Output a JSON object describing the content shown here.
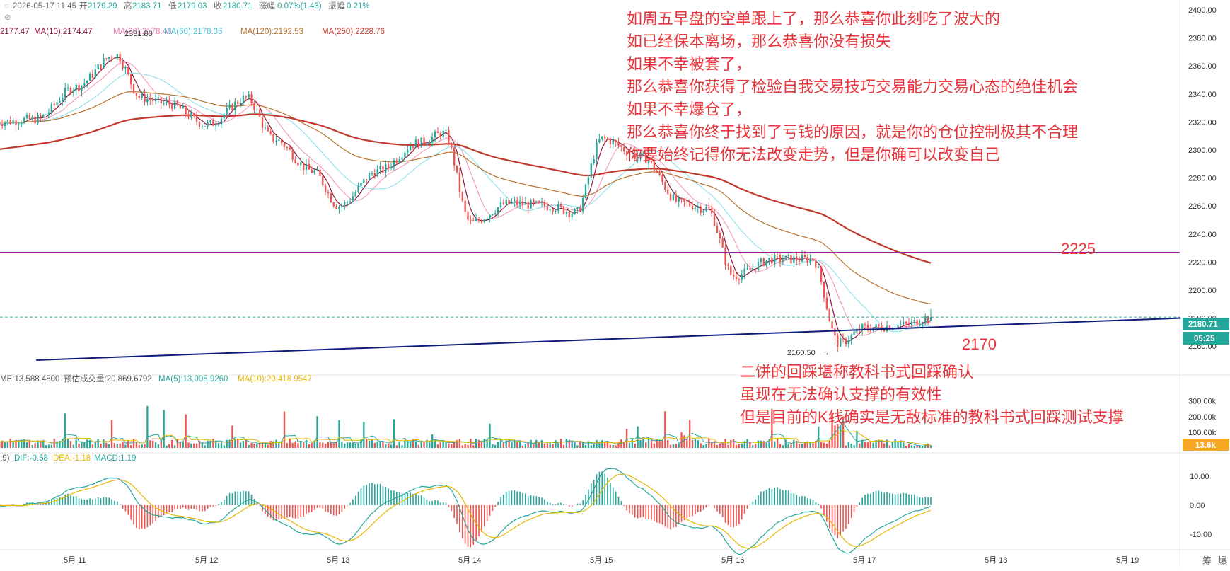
{
  "header": {
    "row1": {
      "datetime": "2026-05-17 11:45",
      "open_label": "开",
      "open": "2179.29",
      "high_label": "高",
      "high": "2183.71",
      "low_label": "低",
      "low": "2179.03",
      "close_label": "收",
      "close": "2180.71",
      "change_label": "涨幅",
      "change": "0.07%(1.43)",
      "amp_label": "振幅",
      "amp": "0.21%"
    },
    "row2": {
      "ma5": "2177.47",
      "ma10": "MA(10):2174.47",
      "ma30": "MA(30):2178.48",
      "ma60": "MA(60):2178.05",
      "ma120": "MA(120):2192.53",
      "ma250": "MA(250):2228.76"
    }
  },
  "annotations": {
    "top_block": [
      "如周五早盘的空单跟上了，那么恭喜你此刻吃了波大的",
      "如已经保本离场，那么恭喜你没有损失",
      "如果不幸被套了，",
      "那么恭喜你获得了检验自我交易技巧交易能力交易心态的绝佳机会",
      "如果不幸爆仓了，",
      "那么恭喜你终于找到了亏钱的原因，就是你的仓位控制极其不合理",
      "你要始终记得你无法改变走势，但是你确可以改变自己"
    ],
    "bottom_block": [
      "二饼的回踩堪称教科书式回踩确认",
      "虽现在无法确认支撑的有效性",
      "但是目前的K线确实是无敌标准的教科书式回踩测试支撑"
    ],
    "level_2225": "2225",
    "level_2170": "2170"
  },
  "price_panel": {
    "yticks": [
      "2400.00",
      "2380.00",
      "2360.00",
      "2340.00",
      "2320.00",
      "2300.00",
      "2280.00",
      "2260.00",
      "2240.00",
      "2220.00",
      "2200.00",
      "2180.00",
      "2160.00"
    ],
    "last_price": "2180.71",
    "countdown": "05:25",
    "high_label": "2381.80",
    "low_label": "2160.50"
  },
  "volume_panel": {
    "label_vol": "ME:13,588.4800",
    "label_est": "预估成交量:20,869.6792",
    "label_ma5": "MA(5):13,005.9260",
    "label_ma10": "MA(10):20,418.9547",
    "yticks": [
      "300.00k",
      "200.00k",
      "100.00k"
    ],
    "current": "13.6k"
  },
  "macd_panel": {
    "label_params": ",9)",
    "label_dif": "DIF:-0.58",
    "label_dea": "DEA:-1.18",
    "label_macd": "MACD:1.19",
    "yticks": [
      "10.00",
      "0.00",
      "-10.00"
    ]
  },
  "xaxis": {
    "labels": [
      "5月 11",
      "5月 12",
      "5月 13",
      "5月 14",
      "5月 15",
      "5月 16",
      "5月 17",
      "5月 18",
      "5月 19"
    ]
  },
  "corner_icons": [
    "筹",
    "爆"
  ],
  "colors": {
    "up": "#26a69a",
    "down": "#ef5350",
    "ma10": "#8b1538",
    "ma30": "#f48fb1",
    "ma60": "#80deea",
    "ma120": "#b8732e",
    "ma250": "#c0392b",
    "support": "#0d1b7a",
    "resistance": "#a020a0",
    "annotation": "#e8353b",
    "price_tag": "#26a69a",
    "volume_tag": "#f5a623"
  },
  "chart_data": {
    "type": "candlestick",
    "title": "",
    "x_categories": [
      "5月 11",
      "5月 12",
      "5月 13",
      "5月 14",
      "5月 15",
      "5月 16",
      "5月 17",
      "5月 18",
      "5月 19"
    ],
    "ylim": [
      2152,
      2402
    ],
    "close_anchors": [
      {
        "x": "5月 10.4",
        "y": 2320
      },
      {
        "x": "5月 10.7",
        "y": 2322
      },
      {
        "x": "5月 11",
        "y": 2345
      },
      {
        "x": "5月 11.3",
        "y": 2368
      },
      {
        "x": "5月 11.5",
        "y": 2337
      },
      {
        "x": "5月 11.7",
        "y": 2333
      },
      {
        "x": "5月 12",
        "y": 2318
      },
      {
        "x": "5月 12.3",
        "y": 2337
      },
      {
        "x": "5月 12.5",
        "y": 2308
      },
      {
        "x": "5月 12.8",
        "y": 2285
      },
      {
        "x": "5月 13",
        "y": 2260
      },
      {
        "x": "5月 13.3",
        "y": 2285
      },
      {
        "x": "5月 13.6",
        "y": 2305
      },
      {
        "x": "5月 13.8",
        "y": 2312
      },
      {
        "x": "5月 14",
        "y": 2248
      },
      {
        "x": "5月 14.3",
        "y": 2262
      },
      {
        "x": "5月 14.6",
        "y": 2260
      },
      {
        "x": "5月 14.8",
        "y": 2255
      },
      {
        "x": "5月 15",
        "y": 2308
      },
      {
        "x": "5月 15.3",
        "y": 2295
      },
      {
        "x": "5月 15.6",
        "y": 2262
      },
      {
        "x": "5月 15.8",
        "y": 2258
      },
      {
        "x": "5月 16",
        "y": 2210
      },
      {
        "x": "5月 16.3",
        "y": 2222
      },
      {
        "x": "5月 16.6",
        "y": 2222
      },
      {
        "x": "5月 16.8",
        "y": 2162
      },
      {
        "x": "5月 17",
        "y": 2173
      },
      {
        "x": "5月 17.3",
        "y": 2175
      },
      {
        "x": "5月 17.5",
        "y": 2180.71
      }
    ],
    "ma_series": [
      {
        "name": "MA(10)",
        "last": 2174.47
      },
      {
        "name": "MA(30)",
        "last": 2178.48
      },
      {
        "name": "MA(60)",
        "last": 2178.05
      },
      {
        "name": "MA(120)",
        "last": 2192.53
      },
      {
        "name": "MA(250)",
        "last": 2228.76
      }
    ],
    "horizontal_lines": [
      {
        "label": "2225",
        "y": 2227
      }
    ],
    "trendline": {
      "label": "2170",
      "from": {
        "x": "5月 10.7",
        "y": 2150
      },
      "to": {
        "x": "5月 19.4",
        "y": 2180
      }
    },
    "volume_ylim": [
      0,
      330000
    ],
    "macd_ylim": [
      -15,
      15
    ]
  }
}
